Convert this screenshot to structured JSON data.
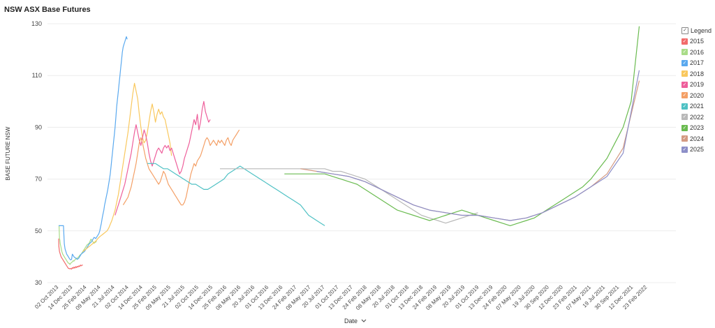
{
  "title": "NSW ASX Base Futures",
  "legend": {
    "header": "Legend",
    "check": "✓",
    "items": [
      {
        "label": "2015",
        "color": "#f26b6b"
      },
      {
        "label": "2016",
        "color": "#a9dc88"
      },
      {
        "label": "2017",
        "color": "#5aa9ef"
      },
      {
        "label": "2018",
        "color": "#f9c85e"
      },
      {
        "label": "2019",
        "color": "#ee5f9b"
      },
      {
        "label": "2020",
        "color": "#f4a067"
      },
      {
        "label": "2021",
        "color": "#4fc1c4"
      },
      {
        "label": "2022",
        "color": "#b9b9b9"
      },
      {
        "label": "2023",
        "color": "#6abb50"
      },
      {
        "label": "2024",
        "color": "#d49a82"
      },
      {
        "label": "2025",
        "color": "#8d8fc8"
      }
    ]
  },
  "chart_data": {
    "type": "line",
    "title": "NSW ASX Base Futures",
    "xlabel": "Date",
    "xlabel_icon": "chevron-down-icon",
    "ylabel": "BASE FUTURE NSW",
    "ylim": [
      30,
      130
    ],
    "yticks": [
      30,
      50,
      70,
      90,
      110,
      130
    ],
    "xticks": [
      "02 Oct 2013",
      "14 Dec 2013",
      "25 Feb 2014",
      "09 May 2014",
      "21 Jul 2014",
      "02 Oct 2014",
      "14 Dec 2014",
      "25 Feb 2015",
      "09 May 2015",
      "21 Jul 2015",
      "02 Oct 2015",
      "14 Dec 2015",
      "25 Feb 2016",
      "08 May 2016",
      "20 Jul 2016",
      "01 Oct 2016",
      "13 Dec 2016",
      "24 Feb 2017",
      "08 May 2017",
      "20 Jul 2017",
      "01 Oct 2017",
      "13 Dec 2017",
      "24 Feb 2018",
      "08 May 2018",
      "20 Jul 2018",
      "01 Oct 2018",
      "13 Dec 2018",
      "24 Feb 2019",
      "08 May 2019",
      "20 Jul 2019",
      "01 Oct 2019",
      "13 Dec 2019",
      "24 Feb 2020",
      "07 May 2020",
      "19 Jul 2020",
      "30 Sep 2020",
      "12 Dec 2020",
      "23 Feb 2021",
      "07 May 2021",
      "19 Jul 2021",
      "30 Sep 2021",
      "12 Dec 2021",
      "23 Feb 2022"
    ],
    "grid": true,
    "legend_position": "right",
    "series": [
      {
        "name": "2015",
        "x": [
          0,
          0.3,
          1,
          2,
          3,
          4,
          5,
          6,
          7,
          8,
          9,
          10,
          11,
          12,
          13,
          14,
          15,
          16,
          17,
          18,
          19,
          20,
          21,
          22,
          23,
          24,
          25,
          26,
          27,
          28,
          29,
          30
        ],
        "y": [
          47,
          44,
          42,
          41,
          40,
          39.5,
          39,
          38.5,
          38,
          37.5,
          37,
          36.5,
          36,
          35.5,
          35.5,
          35.3,
          35.5,
          35.2,
          35.8,
          35.5,
          36,
          35.6,
          36.2,
          35.8,
          36.3,
          36,
          36.5,
          36.2,
          36.8,
          36.5,
          36.8,
          36.7
        ]
      },
      {
        "name": "2016",
        "x": [
          0,
          0.5,
          1,
          1.5,
          2,
          3,
          4,
          5,
          6,
          7,
          8,
          9,
          10,
          11,
          12,
          13,
          14,
          15,
          16,
          17,
          18,
          19,
          20,
          21,
          22,
          23,
          24,
          25,
          26,
          27,
          28,
          29,
          30,
          31,
          32,
          33,
          34,
          35,
          36,
          37,
          38,
          39,
          40,
          41,
          42,
          43,
          44,
          45,
          46,
          47
        ],
        "y": [
          52,
          52,
          47,
          46.5,
          45,
          43.5,
          42,
          41,
          40.5,
          40,
          39.5,
          39,
          38.5,
          38,
          37.5,
          37.5,
          37,
          37.5,
          37.8,
          38,
          38.5,
          38.3,
          38.8,
          39,
          39.5,
          39,
          39.8,
          40,
          40.5,
          40.8,
          41,
          41.5,
          42,
          42.5,
          43,
          43.5,
          44,
          44.5,
          44.8,
          45,
          45.3,
          46,
          46.8,
          46.5,
          46,
          45.5,
          45.2,
          45.5,
          45.7,
          46
        ]
      },
      {
        "name": "2017",
        "x": [
          0,
          1,
          2,
          3,
          4,
          5,
          6,
          7,
          8,
          9,
          10,
          11,
          12,
          13,
          14,
          15,
          16,
          17,
          18,
          19,
          20,
          21,
          22,
          23,
          24,
          25,
          26,
          27,
          28,
          29,
          30,
          31,
          32,
          33,
          34,
          35,
          36,
          37,
          38,
          39,
          40,
          41,
          42,
          43,
          44,
          45,
          46,
          47,
          48,
          49,
          50,
          51,
          52,
          53,
          54,
          55,
          56,
          57,
          58,
          59,
          60,
          61,
          62,
          63,
          64,
          65,
          66,
          67,
          68,
          69,
          70,
          71,
          72,
          73,
          74,
          75,
          76,
          77,
          78,
          79,
          80,
          81,
          82,
          83,
          84,
          85
        ],
        "y": [
          52,
          52,
          52,
          52,
          52,
          52,
          52,
          45,
          43,
          42,
          41,
          40.5,
          40,
          39.5,
          39,
          38.8,
          39,
          41,
          40.5,
          40,
          39.7,
          39.5,
          39.3,
          39,
          39.2,
          39.5,
          40,
          40.5,
          41,
          41.3,
          41.5,
          41.8,
          42,
          42.5,
          43,
          43.5,
          44,
          44.5,
          45,
          45.3,
          45.5,
          46,
          46.5,
          47,
          47.5,
          47.3,
          47,
          47.5,
          48,
          48.5,
          49,
          50,
          51.5,
          53,
          55,
          56.5,
          58,
          60,
          61.5,
          63,
          64.5,
          66,
          68,
          70,
          72,
          75,
          78,
          81,
          84,
          87,
          90,
          94,
          98,
          101,
          104,
          107,
          110,
          113,
          116,
          119,
          121,
          122,
          123,
          124,
          125,
          124
        ]
      },
      {
        "name": "2018",
        "x": [
          30,
          32,
          34,
          36,
          38,
          40,
          42,
          44,
          46,
          48,
          50,
          52,
          54,
          56,
          58,
          60,
          62,
          64,
          66,
          68,
          70,
          72,
          74,
          76,
          78,
          80,
          82,
          84,
          86,
          88,
          90,
          92,
          94,
          96,
          98,
          100,
          102,
          104,
          106,
          108,
          110,
          112,
          114,
          116,
          118,
          120,
          122,
          124,
          126,
          128,
          130,
          132,
          134,
          136,
          138,
          140
        ],
        "y": [
          42,
          42.5,
          43,
          43.5,
          44,
          44.5,
          45,
          45.5,
          46,
          46.8,
          47.5,
          48,
          48.5,
          49,
          49.5,
          50,
          51,
          52.5,
          54,
          56,
          58,
          61,
          64,
          68,
          72,
          76,
          80,
          84,
          88,
          93,
          98,
          103,
          107,
          104,
          101,
          95,
          90,
          86,
          84,
          85,
          88,
          92,
          96,
          99,
          96,
          92,
          95,
          97,
          95,
          96,
          94,
          93,
          90,
          87,
          84,
          79
        ]
      },
      {
        "name": "2019",
        "x": [
          70,
          72,
          74,
          76,
          78,
          80,
          82,
          84,
          86,
          88,
          90,
          92,
          94,
          96,
          98,
          100,
          102,
          104,
          106,
          108,
          110,
          112,
          114,
          116,
          118,
          120,
          122,
          124,
          126,
          128,
          130,
          132,
          134,
          136,
          138,
          140,
          142,
          144,
          146,
          148,
          150,
          152,
          154,
          156,
          158,
          160,
          162,
          164,
          166,
          168,
          170,
          172,
          174,
          176,
          178,
          180,
          182,
          184,
          186,
          188
        ],
        "y": [
          56,
          58,
          60,
          62,
          64,
          66,
          68,
          71,
          74,
          77,
          80,
          84,
          88,
          91,
          88,
          85,
          83,
          86,
          89,
          87,
          84,
          80,
          77,
          75,
          77,
          79,
          81,
          82,
          81,
          80,
          82,
          83,
          82,
          83,
          81,
          82,
          80,
          78,
          76,
          74,
          72,
          73,
          75,
          78,
          80,
          82,
          84,
          87,
          90,
          93,
          91,
          95,
          89,
          92,
          97,
          100,
          96,
          94,
          92,
          93
        ]
      },
      {
        "name": "2020",
        "x": [
          80,
          82,
          84,
          86,
          88,
          90,
          92,
          94,
          96,
          98,
          100,
          102,
          104,
          106,
          108,
          110,
          112,
          114,
          116,
          118,
          120,
          122,
          124,
          126,
          128,
          130,
          132,
          134,
          136,
          138,
          140,
          142,
          144,
          146,
          148,
          150,
          152,
          154,
          156,
          158,
          160,
          162,
          164,
          166,
          168,
          170,
          172,
          174,
          176,
          178,
          180,
          182,
          184,
          186,
          188,
          190,
          192,
          194,
          196,
          198,
          200,
          202,
          204,
          206,
          208,
          210,
          212,
          214,
          216,
          218,
          220,
          222,
          224
        ],
        "y": [
          60,
          61,
          62,
          63,
          65,
          67,
          70,
          73,
          76,
          80,
          84,
          86,
          84,
          81,
          78,
          76,
          74,
          73,
          72,
          71,
          70,
          69,
          68,
          69,
          71,
          73,
          72,
          70,
          68,
          67,
          66,
          65,
          64,
          63,
          62,
          61,
          60,
          60,
          61,
          63,
          66,
          69,
          72,
          74,
          76,
          75,
          77,
          78,
          79,
          81,
          83,
          85,
          86,
          85,
          83,
          84,
          85,
          84,
          83,
          85,
          84,
          85,
          84,
          83,
          85,
          86,
          84,
          83,
          85,
          86,
          87,
          88,
          89
        ]
      },
      {
        "name": "2021",
        "x": [
          110,
          115,
          120,
          125,
          130,
          135,
          140,
          145,
          150,
          155,
          160,
          165,
          170,
          175,
          180,
          185,
          190,
          195,
          200,
          205,
          210,
          215,
          220,
          225,
          230,
          235,
          240,
          245,
          250,
          255,
          260,
          265,
          270,
          275,
          280,
          285,
          290,
          295,
          300,
          305,
          310,
          315,
          320,
          325,
          330
        ],
        "y": [
          76,
          76,
          76,
          75,
          74,
          74,
          73,
          72,
          71,
          70,
          69,
          68,
          68,
          67,
          66,
          66,
          67,
          68,
          69,
          70,
          72,
          73,
          74,
          75,
          74,
          73,
          72,
          71,
          70,
          69,
          68,
          67,
          66,
          65,
          64,
          63,
          62,
          61,
          60,
          58,
          56,
          55,
          54,
          53,
          52
        ]
      },
      {
        "name": "2022",
        "x": [
          200,
          210,
          220,
          230,
          240,
          250,
          260,
          270,
          280,
          290,
          300,
          310,
          320,
          330,
          340,
          350,
          360,
          370,
          380,
          390,
          400,
          410,
          420,
          430,
          440,
          450,
          460,
          470,
          480,
          490,
          500,
          510,
          520
        ],
        "y": [
          74,
          74,
          74,
          74,
          74,
          74,
          74,
          74,
          74,
          74,
          74,
          74,
          74,
          74,
          73,
          73,
          72,
          71,
          70,
          68,
          66,
          64,
          62,
          60,
          58,
          56,
          55,
          54,
          53,
          54,
          55,
          56,
          57
        ]
      },
      {
        "name": "2023",
        "x": [
          280,
          290,
          300,
          310,
          320,
          330,
          340,
          350,
          360,
          370,
          380,
          390,
          400,
          410,
          420,
          430,
          440,
          450,
          460,
          470,
          480,
          490,
          500,
          510,
          520,
          530,
          540,
          550,
          560,
          570,
          580,
          590,
          600,
          610,
          620,
          630,
          640,
          650,
          660,
          670,
          680,
          690,
          700,
          710,
          720
        ],
        "y": [
          72,
          72,
          72,
          72,
          72,
          72,
          71,
          70,
          69,
          68,
          66,
          64,
          62,
          60,
          58,
          57,
          56,
          55,
          54,
          55,
          56,
          57,
          58,
          57,
          56,
          55,
          54,
          53,
          52,
          53,
          54,
          55,
          57,
          59,
          61,
          63,
          65,
          67,
          70,
          74,
          78,
          84,
          90,
          100,
          129
        ]
      },
      {
        "name": "2024",
        "x": [
          300,
          320,
          340,
          360,
          380,
          400,
          420,
          440,
          460,
          480,
          500,
          520,
          540,
          560,
          580,
          600,
          620,
          640,
          660,
          680,
          700,
          720
        ],
        "y": [
          74,
          73,
          72,
          71,
          69,
          66,
          63,
          60,
          58,
          57,
          56,
          56,
          55,
          54,
          55,
          57,
          60,
          63,
          67,
          72,
          82,
          108
        ]
      },
      {
        "name": "2025",
        "x": [
          320,
          340,
          360,
          380,
          400,
          420,
          440,
          460,
          480,
          500,
          520,
          540,
          560,
          580,
          600,
          620,
          640,
          660,
          680,
          700,
          720
        ],
        "y": [
          73,
          72,
          71,
          69,
          66,
          63,
          60,
          58,
          57,
          56,
          56,
          55,
          54,
          55,
          57,
          60,
          63,
          67,
          71,
          80,
          112
        ]
      }
    ]
  }
}
